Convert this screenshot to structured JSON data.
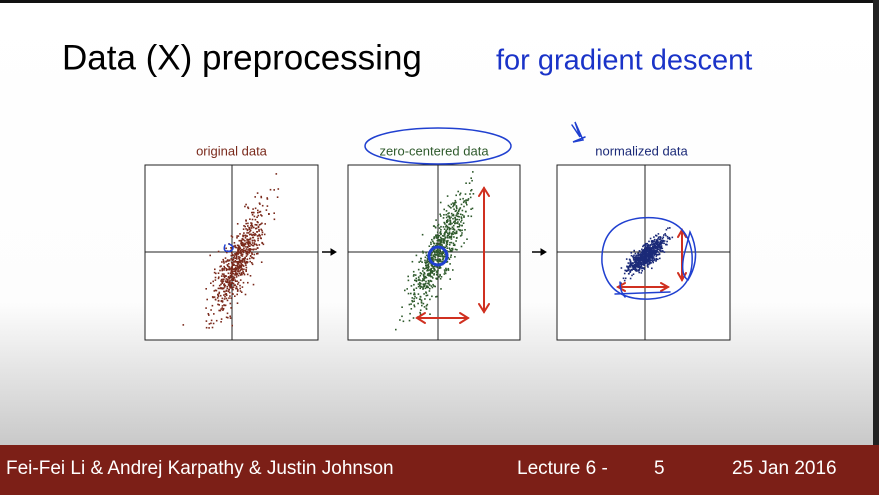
{
  "slide": {
    "title": "Data (X) preprocessing",
    "subtitle": "for gradient descent",
    "plots": [
      {
        "title": "original data"
      },
      {
        "title": "zero-centered data"
      },
      {
        "title": "normalized data"
      }
    ],
    "footer": {
      "authors": "Fei-Fei Li & Andrej Karpathy & Justin Johnson",
      "lecture": "Lecture 6 -",
      "page": "5",
      "date": "25 Jan 2016"
    }
  }
}
